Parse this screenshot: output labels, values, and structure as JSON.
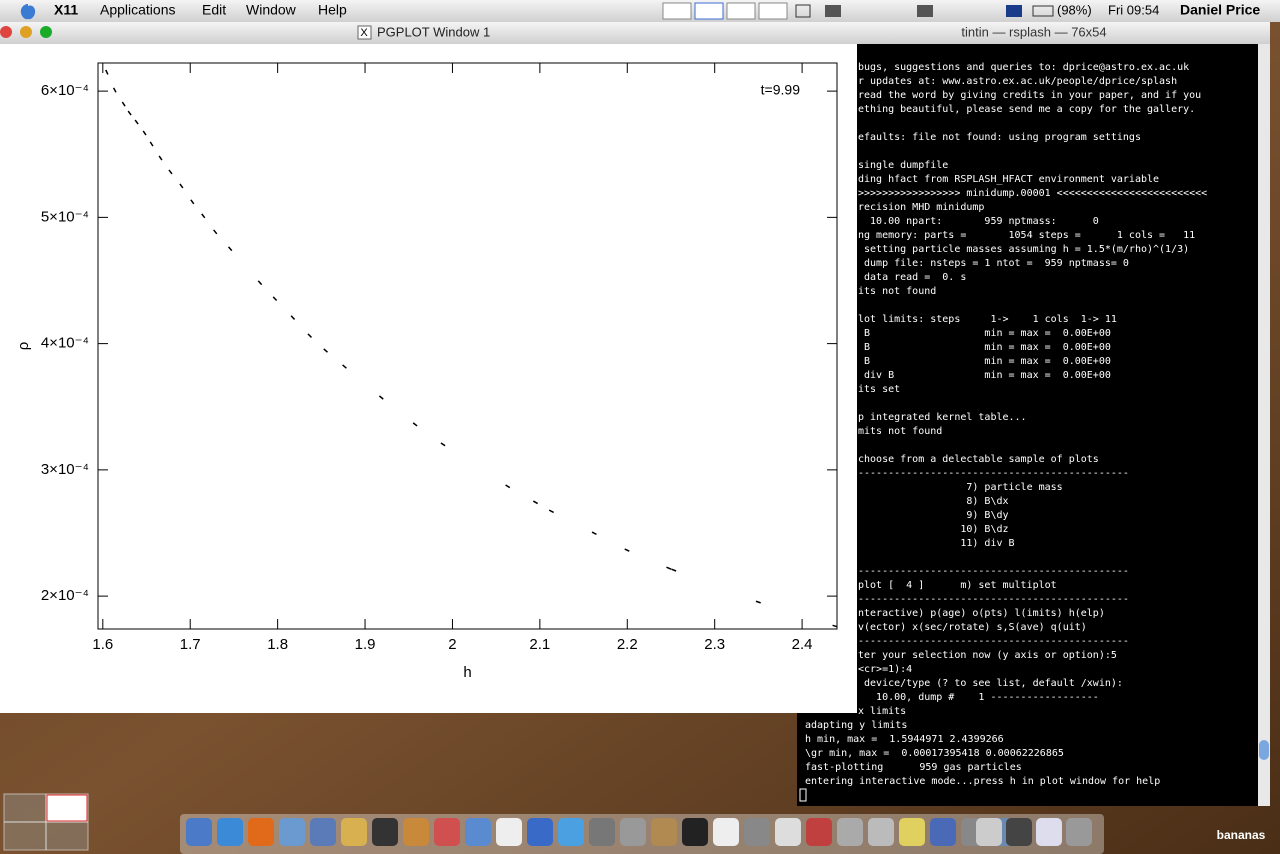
{
  "menu_bar": {
    "app": "X11",
    "items": [
      "Applications",
      "Edit",
      "Window",
      "Help"
    ],
    "battery": "(98%)",
    "clock": "Fri 09:54",
    "user": "Daniel Price"
  },
  "plot_window": {
    "title": "PGPLOT Window 1"
  },
  "terminal": {
    "title": "tintin — rsplash — 76x54",
    "blocks": [
      [
        "bugs, suggestions and queries to: dprice@astro.ex.ac.uk",
        "r updates at: www.astro.ex.ac.uk/people/dprice/splash",
        "read the word by giving credits in your paper, and if you",
        "ething beautiful, please send me a copy for the gallery."
      ],
      [
        "efaults: file not found: using program settings"
      ],
      [
        "single dumpfile",
        "ding hfact from RSPLASH_HFACT environment variable",
        ">>>>>>>>>>>>>>>>> minidump.00001 <<<<<<<<<<<<<<<<<<<<<<<<<",
        "recision MHD minidump",
        "  10.00 npart:       959 nptmass:      0",
        "ng memory: parts =       1054 steps =      1 cols =   11",
        " setting particle masses assuming h = 1.5*(m/rho)^(1/3)",
        " dump file: nsteps = 1 ntot =  959 nptmass= 0",
        " data read =  0. s",
        "its not found"
      ],
      [
        "lot limits: steps     1->    1 cols  1-> 11",
        " B                   min = max =  0.00E+00",
        " B                   min = max =  0.00E+00",
        " B                   min = max =  0.00E+00",
        " div B               min = max =  0.00E+00",
        "its set"
      ],
      [
        "p integrated kernel table...",
        "mits not found"
      ],
      [
        "choose from a delectable sample of plots",
        "---------------------------------------------",
        "                  7) particle mass",
        "                  8) B\\dx",
        "                  9) B\\dy",
        "                 10) B\\dz",
        "                 11) div B"
      ],
      [
        "---------------------------------------------",
        "plot [  4 ]      m) set multiplot",
        "---------------------------------------------",
        "nteractive) p(age) o(pts) l(imits) h(elp)",
        "v(ector) x(sec/rotate) s,S(ave) q(uit)",
        "---------------------------------------------",
        "ter your selection now (y axis or option):5",
        "<cr>=1):4",
        " device/type (? to see list, default /xwin):",
        "   10.00, dump #    1 ------------------",
        "x limits",
        "adapting y limits",
        "h min, max =  1.5944971 2.4399266",
        "\\gr min, max =  0.00017395418 0.00062226865",
        "fast-plotting      959 gas particles",
        "entering interactive mode...press h in plot window for help"
      ]
    ]
  },
  "dock": {
    "label": "bananas"
  },
  "chart_data": {
    "type": "scatter",
    "x_label": "h",
    "y_label": "ρ",
    "annotation": "t=9.99",
    "x": [
      1.6046,
      1.6137,
      1.6239,
      1.6307,
      1.6387,
      1.6478,
      1.6558,
      1.666,
      1.6774,
      1.6899,
      1.7024,
      1.7149,
      1.7286,
      1.7457,
      1.7798,
      1.7969,
      1.8174,
      1.8367,
      1.8549,
      1.8765,
      1.9186,
      1.9573,
      1.9892,
      2.0632,
      2.095,
      2.1132,
      2.1622,
      2.1997,
      2.2475,
      2.2532,
      2.3499,
      2.4376
    ],
    "values": [
      0.000615,
      0.0006008,
      0.0005897,
      0.0005826,
      0.0005755,
      0.0005668,
      0.0005581,
      0.000547,
      0.000536,
      0.0005249,
      0.0005123,
      0.0005012,
      0.0004885,
      0.0004751,
      0.0004482,
      0.0004356,
      0.0004206,
      0.0004063,
      0.0003945,
      0.0003818,
      0.0003573,
      0.000336,
      0.0003202,
      0.000287,
      0.0002743,
      0.0002672,
      0.0002498,
      0.0002364,
      0.0002221,
      0.0002206,
      0.0001953,
      0.0001763
    ],
    "color": "#000000",
    "xlim": [
      1.5944971,
      2.4399266
    ],
    "ylim": [
      0.00017395418,
      0.00062226865
    ],
    "xticks": [
      1.6,
      1.7,
      1.8,
      1.9,
      2,
      2.1,
      2.2,
      2.3,
      2.4
    ],
    "yticks": [
      {
        "value": 0.0002,
        "label": "2×10⁻⁴"
      },
      {
        "value": 0.0003,
        "label": "3×10⁻⁴"
      },
      {
        "value": 0.0004,
        "label": "4×10⁻⁴"
      },
      {
        "value": 0.0005,
        "label": "5×10⁻⁴"
      },
      {
        "value": 0.0006,
        "label": "6×10⁻⁴"
      }
    ]
  }
}
